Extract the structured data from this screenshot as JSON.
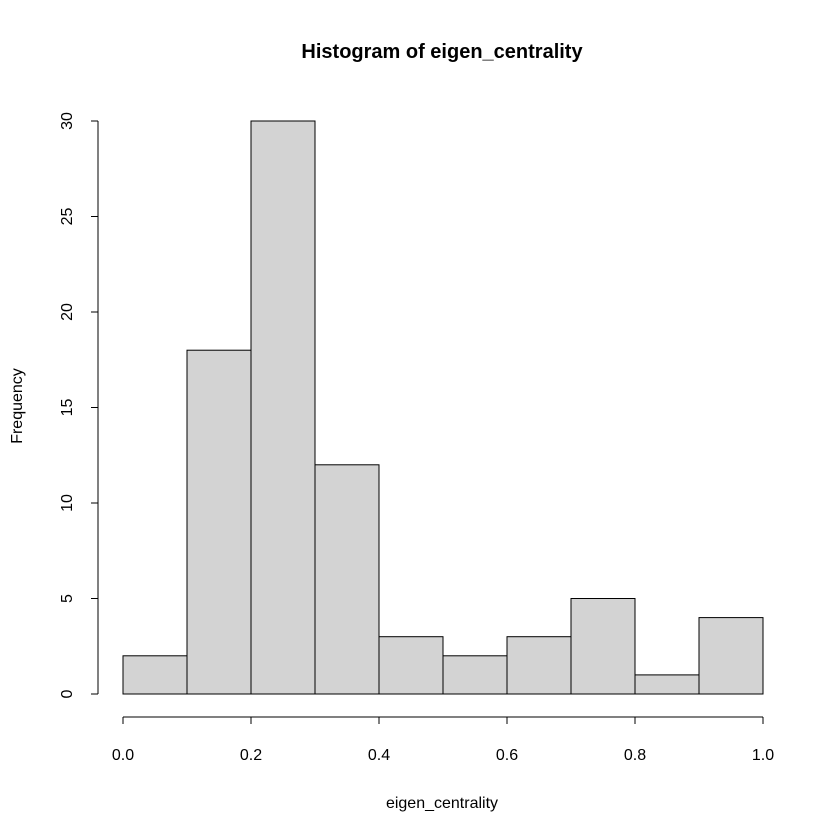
{
  "chart_data": {
    "type": "bar",
    "title": "Histogram of eigen_centrality",
    "xlabel": "eigen_centrality",
    "ylabel": "Frequency",
    "bins": [
      {
        "start": 0.0,
        "end": 0.1,
        "count": 2
      },
      {
        "start": 0.1,
        "end": 0.2,
        "count": 18
      },
      {
        "start": 0.2,
        "end": 0.3,
        "count": 30
      },
      {
        "start": 0.3,
        "end": 0.4,
        "count": 12
      },
      {
        "start": 0.4,
        "end": 0.5,
        "count": 3
      },
      {
        "start": 0.5,
        "end": 0.6,
        "count": 2
      },
      {
        "start": 0.6,
        "end": 0.7,
        "count": 3
      },
      {
        "start": 0.7,
        "end": 0.8,
        "count": 5
      },
      {
        "start": 0.8,
        "end": 0.9,
        "count": 1
      },
      {
        "start": 0.9,
        "end": 1.0,
        "count": 4
      }
    ],
    "xlim": [
      0.0,
      1.0
    ],
    "ylim": [
      0,
      30
    ],
    "x_ticks": [
      "0.0",
      "0.2",
      "0.4",
      "0.6",
      "0.8",
      "1.0"
    ],
    "y_ticks": [
      "0",
      "5",
      "10",
      "15",
      "20",
      "25",
      "30"
    ],
    "bar_color": "#d3d3d3",
    "grid": false
  }
}
